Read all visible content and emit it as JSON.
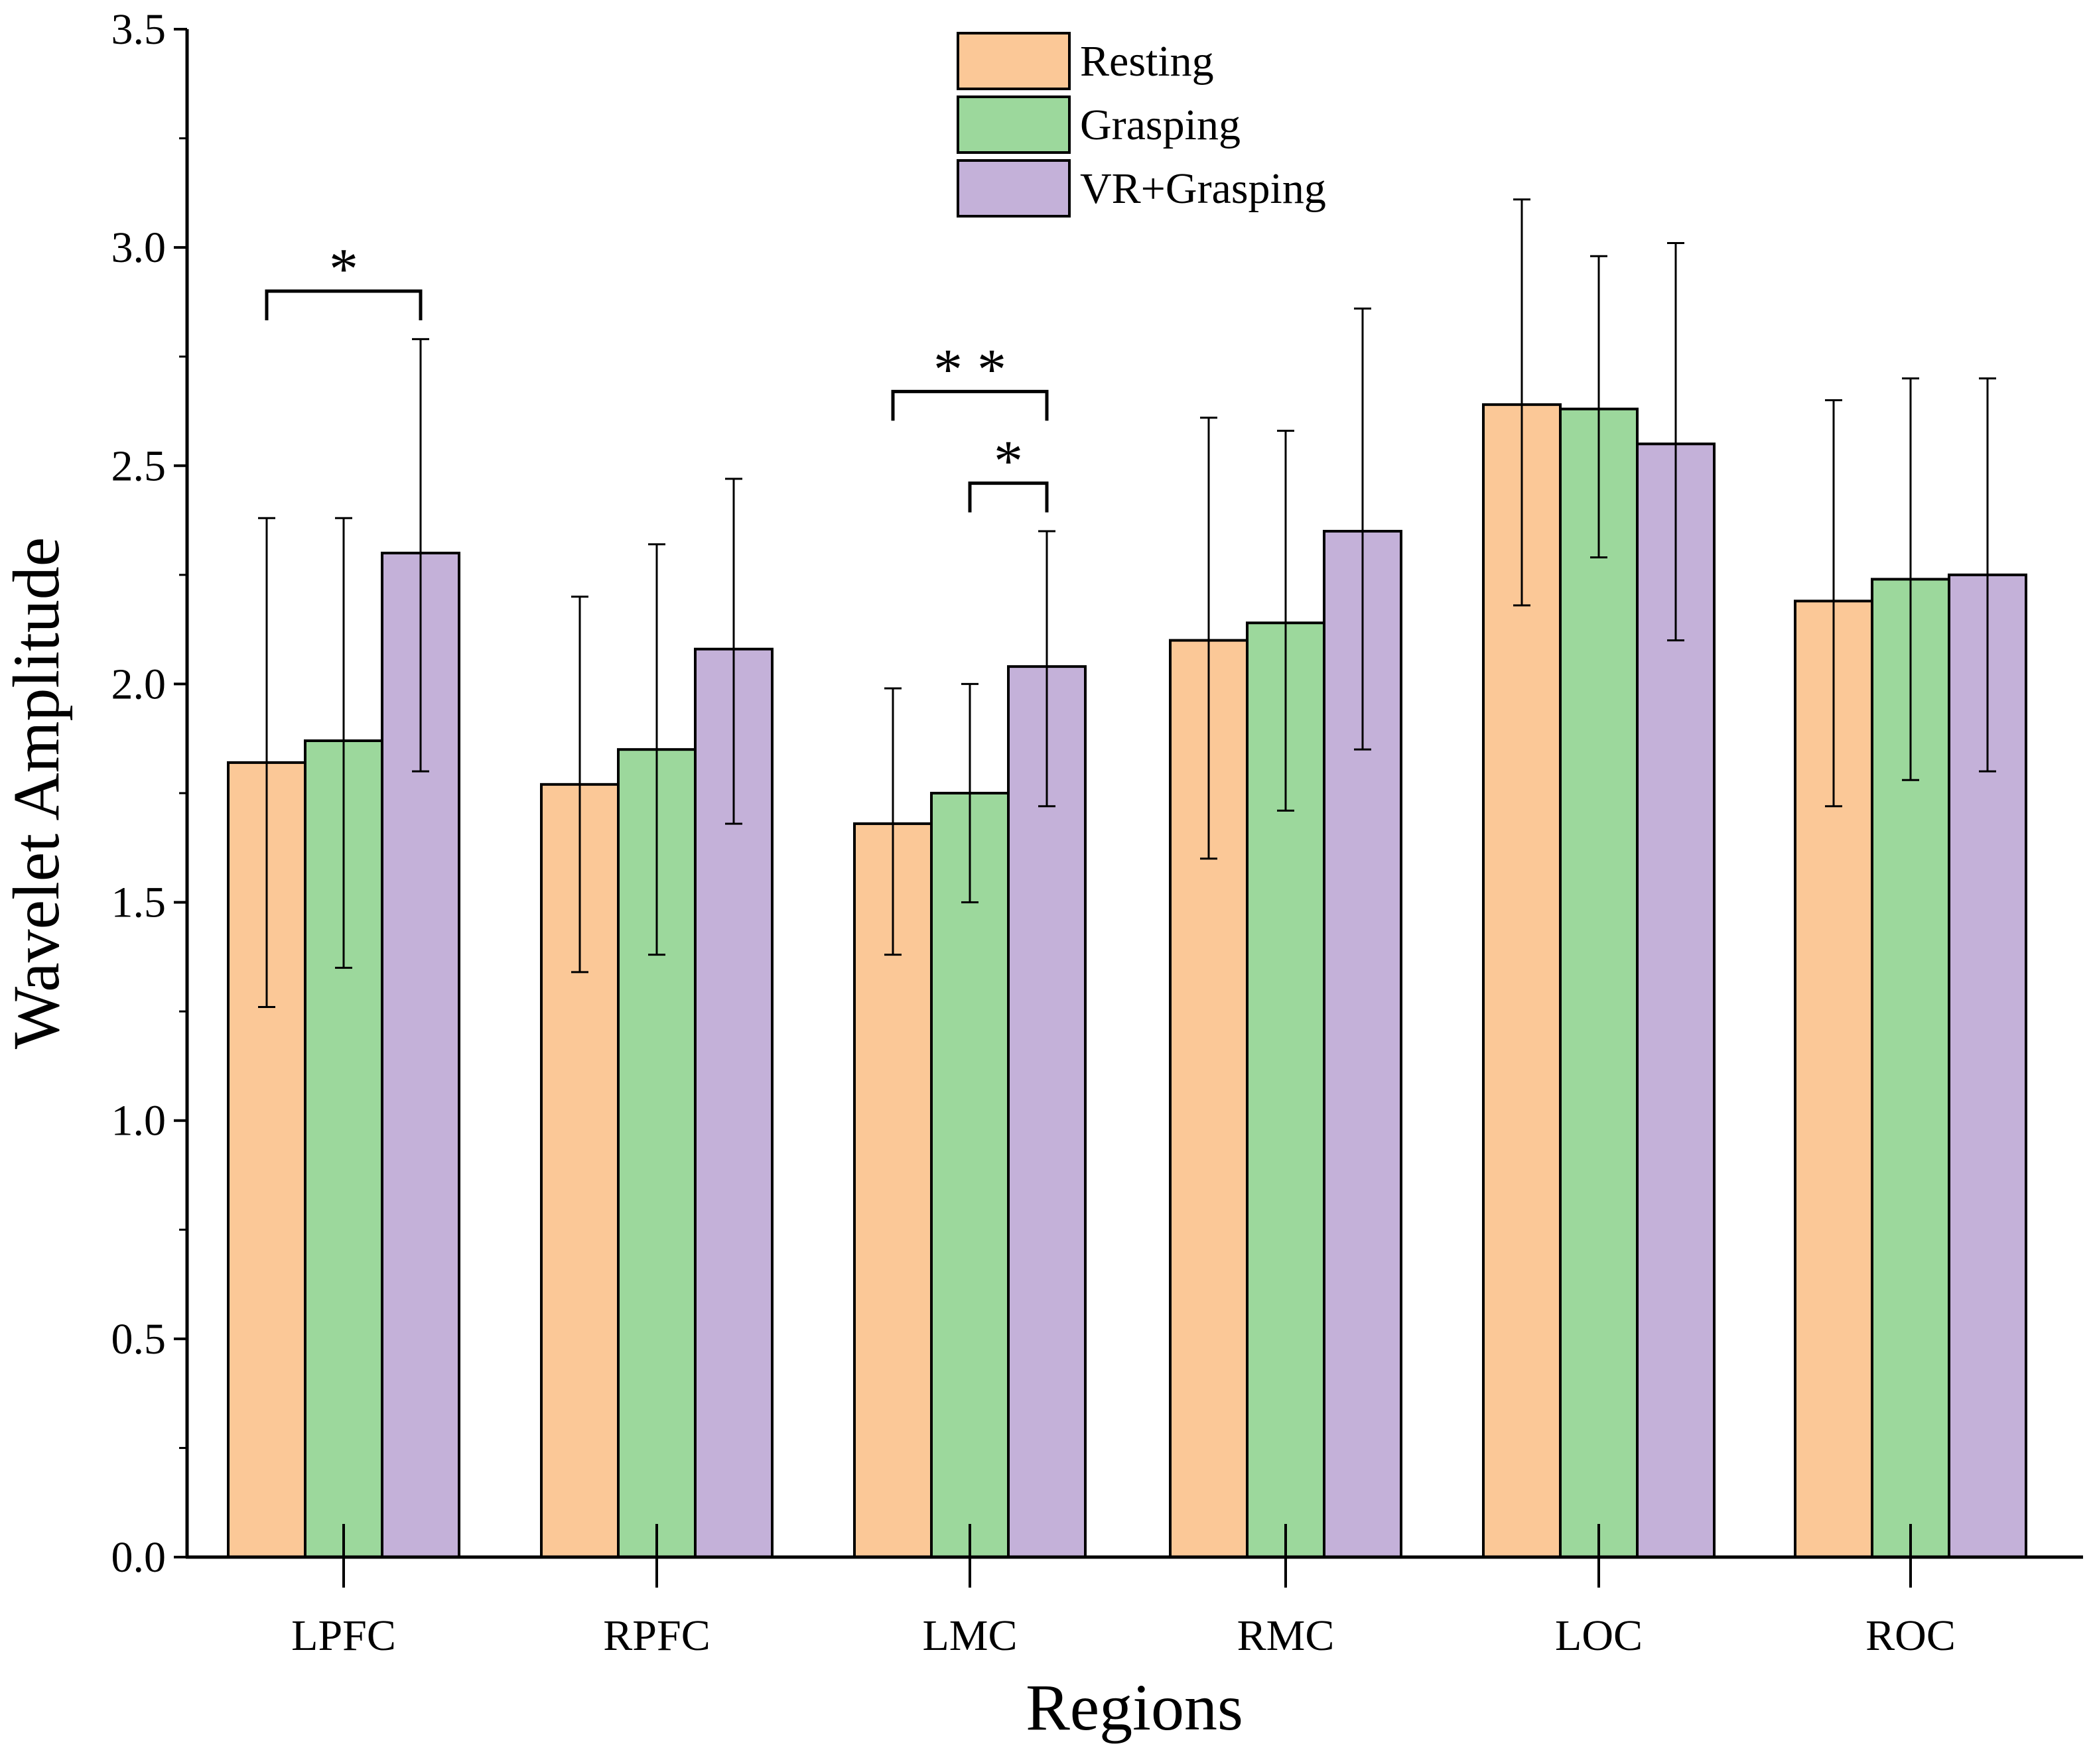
{
  "chart_data": {
    "type": "bar",
    "title": "",
    "xlabel": "Regions",
    "ylabel": "Wavelet Amplitude",
    "ylim": [
      0,
      3.5
    ],
    "yticks": [
      "0.0",
      "0.5",
      "1.0",
      "1.5",
      "2.0",
      "2.5",
      "3.0",
      "3.5"
    ],
    "categories": [
      "LPFC",
      "RPFC",
      "LMC",
      "RMC",
      "LOC",
      "ROC"
    ],
    "legend_position": "top-center",
    "series": [
      {
        "name": "Resting",
        "color": "#FBC897",
        "values": [
          1.82,
          1.77,
          1.68,
          2.1,
          2.64,
          2.19
        ],
        "err_low": [
          1.26,
          1.34,
          1.38,
          1.6,
          2.18,
          1.72
        ],
        "err_high": [
          2.38,
          2.2,
          1.99,
          2.61,
          3.11,
          2.65
        ]
      },
      {
        "name": "Grasping",
        "color": "#9CD89C",
        "values": [
          1.87,
          1.85,
          1.75,
          2.14,
          2.63,
          2.24
        ],
        "err_low": [
          1.35,
          1.38,
          1.5,
          1.71,
          2.29,
          1.78
        ],
        "err_high": [
          2.38,
          2.32,
          2.0,
          2.58,
          2.98,
          2.7
        ]
      },
      {
        "name": "VR+Grasping",
        "color": "#C4B1D9",
        "values": [
          2.3,
          2.08,
          2.04,
          2.35,
          2.55,
          2.25
        ],
        "err_low": [
          1.8,
          1.68,
          1.72,
          1.85,
          2.1,
          1.8
        ],
        "err_high": [
          2.79,
          2.47,
          2.35,
          2.86,
          3.01,
          2.7
        ]
      }
    ],
    "significance": [
      {
        "category": "LPFC",
        "from": 0,
        "to": 2,
        "level": 2.9,
        "label": "*"
      },
      {
        "category": "LMC",
        "from": 0,
        "to": 2,
        "level": 2.67,
        "label": "* *"
      },
      {
        "category": "LMC",
        "from": 1,
        "to": 2,
        "level": 2.46,
        "label": "*"
      }
    ]
  }
}
